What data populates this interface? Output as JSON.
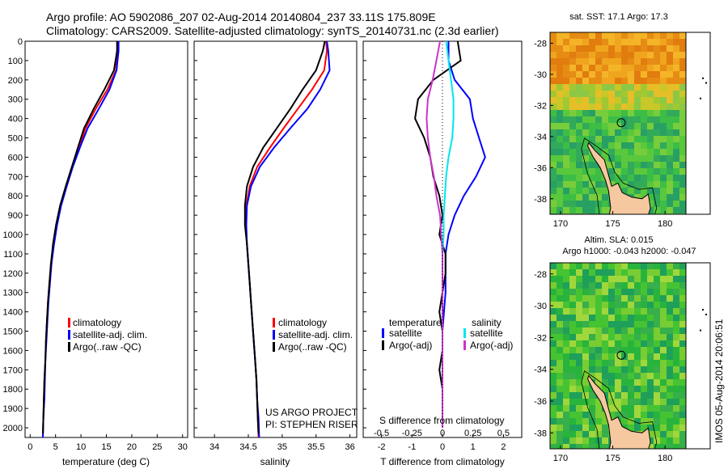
{
  "figure": {
    "title_line1": "Argo profile: AO 5902086_207 02-Aug-2014 20140804_237 33.11S 175.809E",
    "title_line2": "Climatology: CARS2009. Satellite-adjusted climatology: synTS_20140731.nc (2.3d earlier)",
    "footer": "IMOS 05-Aug-2014 20:06:51",
    "project_line1": "US ARGO PROJECT",
    "project_line2": "PI: STEPHEN RISER"
  },
  "colors": {
    "climatology": "#ff0000",
    "satellite_adj": "#0000ff",
    "argo": "#000000",
    "salinity_sat": "#00e5ee",
    "salinity_argo": "#cc33cc"
  },
  "chart_data": [
    {
      "type": "line",
      "xlabel": "temperature (deg C)",
      "ylabel": "",
      "xlim": [
        -1,
        31
      ],
      "ylim": [
        2050,
        0
      ],
      "xticks": [
        "0",
        "5",
        "10",
        "15",
        "20",
        "25",
        "30"
      ],
      "yticks": [
        "0",
        "100",
        "200",
        "300",
        "400",
        "500",
        "600",
        "700",
        "800",
        "900",
        "1000",
        "1100",
        "1200",
        "1300",
        "1400",
        "1500",
        "1600",
        "1700",
        "1800",
        "1900",
        "2000"
      ],
      "legend": [
        "climatology",
        "satellite-adj. clim.",
        "Argo(..raw -QC)"
      ],
      "legend_position": "bottom-center",
      "series": [
        {
          "name": "climatology",
          "x": [
            17.2,
            17.2,
            16.9,
            15.2,
            12.9,
            10.9,
            9.6,
            8.3,
            7.1,
            6.0,
            5.2,
            4.6,
            4.1,
            3.8,
            3.5,
            3.3,
            3.1,
            3.0,
            2.8,
            2.7,
            2.6,
            2.5
          ],
          "y": [
            0,
            50,
            150,
            250,
            350,
            450,
            550,
            650,
            750,
            850,
            950,
            1050,
            1150,
            1250,
            1350,
            1450,
            1550,
            1650,
            1750,
            1850,
            1950,
            2050
          ]
        },
        {
          "name": "satellite-adj. clim.",
          "x": [
            17.4,
            17.4,
            17.0,
            15.6,
            13.5,
            11.3,
            9.8,
            8.4,
            7.2,
            6.1,
            5.3,
            4.7,
            4.2,
            3.9,
            3.6,
            3.4,
            3.2,
            3.0,
            2.9,
            2.8,
            2.6,
            2.5
          ],
          "y": [
            0,
            50,
            150,
            250,
            350,
            450,
            550,
            650,
            750,
            850,
            950,
            1050,
            1150,
            1250,
            1350,
            1450,
            1550,
            1650,
            1750,
            1850,
            1950,
            2050
          ]
        },
        {
          "name": "Argo(..raw -QC)",
          "x": [
            17.1,
            17.1,
            16.5,
            14.6,
            12.5,
            10.6,
            9.4,
            8.2,
            7.0,
            5.9,
            5.1,
            4.5,
            4.1,
            3.8,
            3.5,
            3.3,
            3.1,
            3.0,
            2.8,
            2.7,
            2.6,
            2.5
          ],
          "y": [
            0,
            50,
            150,
            250,
            350,
            450,
            550,
            650,
            750,
            850,
            950,
            1050,
            1150,
            1250,
            1350,
            1450,
            1550,
            1650,
            1750,
            1850,
            1950,
            2030
          ]
        }
      ]
    },
    {
      "type": "line",
      "xlabel": "salinity",
      "ylabel": "",
      "xlim": [
        33.7,
        36.1
      ],
      "ylim": [
        2050,
        0
      ],
      "xticks": [
        "34",
        "34.5",
        "35",
        "35.5",
        "36"
      ],
      "legend": [
        "climatology",
        "satellite-adj. clim.",
        "Argo(..raw -QC)"
      ],
      "legend_position": "bottom-right",
      "series": [
        {
          "name": "climatology",
          "x": [
            35.65,
            35.66,
            35.62,
            35.44,
            35.23,
            35.02,
            34.82,
            34.63,
            34.52,
            34.47,
            34.46,
            34.48,
            34.5,
            34.52,
            34.54,
            34.56,
            34.58,
            34.6,
            34.62,
            34.63,
            34.64,
            34.65
          ],
          "y": [
            0,
            50,
            150,
            250,
            350,
            450,
            550,
            650,
            750,
            850,
            950,
            1050,
            1150,
            1250,
            1350,
            1450,
            1550,
            1650,
            1750,
            1850,
            1950,
            2050
          ]
        },
        {
          "name": "satellite-adj. clim.",
          "x": [
            35.66,
            35.68,
            35.7,
            35.56,
            35.37,
            35.12,
            34.88,
            34.67,
            34.54,
            34.48,
            34.47,
            34.48,
            34.5,
            34.52,
            34.54,
            34.56,
            34.58,
            34.6,
            34.62,
            34.63,
            34.65,
            34.66
          ],
          "y": [
            0,
            50,
            150,
            250,
            350,
            450,
            550,
            650,
            750,
            850,
            950,
            1050,
            1150,
            1250,
            1350,
            1450,
            1550,
            1650,
            1750,
            1850,
            1950,
            2050
          ]
        },
        {
          "name": "Argo(..raw -QC)",
          "x": [
            35.63,
            35.6,
            35.5,
            35.3,
            35.12,
            34.92,
            34.72,
            34.57,
            34.48,
            34.45,
            34.45,
            34.48,
            34.5,
            34.52,
            34.54,
            34.56,
            34.58,
            34.6,
            34.62,
            34.63,
            34.64,
            34.65
          ],
          "y": [
            0,
            50,
            150,
            250,
            350,
            450,
            550,
            650,
            750,
            850,
            950,
            1050,
            1150,
            1250,
            1350,
            1450,
            1550,
            1650,
            1750,
            1850,
            1950,
            2030
          ]
        }
      ]
    },
    {
      "type": "line",
      "xlabel": "T difference from climatology",
      "ylabel": "",
      "top_label": "S difference from climatology",
      "xlim": [
        -2.6,
        2.6
      ],
      "ylim": [
        2050,
        0
      ],
      "xticks": [
        "-2",
        "-1",
        "0",
        "1",
        "2"
      ],
      "top_xticks": [
        "-0.5",
        "-0.25",
        "0",
        "0.25",
        "0.5"
      ],
      "legend_headers": [
        "temperature",
        "salinity"
      ],
      "legend": [
        "satellite",
        "Argo(-adj)",
        "satellite",
        "Argo(-adj)"
      ],
      "legend_position": "bottom",
      "series": [
        {
          "name": "satellite",
          "quantity": "temperature",
          "x": [
            0.2,
            0.2,
            0.4,
            0.9,
            1.0,
            1.2,
            1.4,
            1.1,
            0.7,
            0.4,
            0.2,
            0.1,
            0.1,
            0.1,
            0.05,
            0.0,
            0.0,
            0.0,
            0.0,
            0.0,
            0.0
          ],
          "y": [
            0,
            100,
            200,
            300,
            400,
            500,
            600,
            700,
            800,
            900,
            1000,
            1100,
            1200,
            1300,
            1400,
            1500,
            1600,
            1700,
            1800,
            1900,
            2000
          ]
        },
        {
          "name": "Argo(-adj)",
          "quantity": "temperature",
          "x": [
            0.5,
            0.6,
            -0.3,
            -0.8,
            -0.9,
            -0.6,
            -0.4,
            -0.3,
            -0.1,
            0.0,
            -0.1,
            0.1,
            0.1,
            0.0,
            -0.1,
            0.0,
            0.0,
            -0.1,
            0.0,
            0.0,
            0.0
          ],
          "y": [
            0,
            100,
            200,
            300,
            400,
            500,
            600,
            700,
            800,
            900,
            1000,
            1100,
            1200,
            1300,
            1400,
            1500,
            1600,
            1700,
            1800,
            1900,
            2000
          ]
        },
        {
          "name": "satellite",
          "quantity": "salinity",
          "x": [
            0.03,
            0.05,
            0.07,
            0.09,
            0.09,
            0.08,
            0.05,
            0.03,
            0.02,
            0.01,
            0.01,
            0.0,
            0.0,
            0.0,
            0.0,
            0.0,
            0.0,
            0.0,
            0.0,
            0.0,
            0.0
          ],
          "y": [
            0,
            100,
            200,
            300,
            400,
            500,
            600,
            700,
            800,
            900,
            1000,
            1100,
            1200,
            1300,
            1400,
            1500,
            1600,
            1700,
            1800,
            1900,
            2000
          ]
        },
        {
          "name": "Argo(-adj)",
          "quantity": "salinity",
          "x": [
            -0.02,
            -0.05,
            -0.08,
            -0.12,
            -0.13,
            -0.12,
            -0.1,
            -0.07,
            -0.05,
            -0.02,
            -0.01,
            0.0,
            0.0,
            0.0,
            0.0,
            0.0,
            0.0,
            0.0,
            0.0,
            0.0,
            0.0
          ],
          "y": [
            0,
            100,
            200,
            300,
            400,
            500,
            600,
            700,
            800,
            900,
            1000,
            1100,
            1200,
            1300,
            1400,
            1500,
            1600,
            1700,
            1800,
            1900,
            2000
          ]
        }
      ]
    },
    {
      "type": "heatmap",
      "title": "sat. SST: 17.1  Argo: 17.3",
      "xlim": [
        169,
        182
      ],
      "ylim": [
        -39,
        -27.3
      ],
      "xticks": [
        "170",
        "175",
        "180"
      ],
      "yticks": [
        "-28",
        "-30",
        "-32",
        "-34",
        "-36",
        "-38"
      ],
      "marker": {
        "lon": 175.809,
        "lat": -33.11
      }
    },
    {
      "type": "heatmap",
      "title_line1": "Altim. SLA: 0.015",
      "title_line2": "Argo h1000: -0.043 h2000: -0.047",
      "xlim": [
        169,
        182
      ],
      "ylim": [
        -39,
        -27.3
      ],
      "xticks": [
        "170",
        "175",
        "180"
      ],
      "yticks": [
        "-28",
        "-30",
        "-32",
        "-34",
        "-36",
        "-38"
      ],
      "marker": {
        "lon": 175.809,
        "lat": -33.11
      }
    }
  ]
}
